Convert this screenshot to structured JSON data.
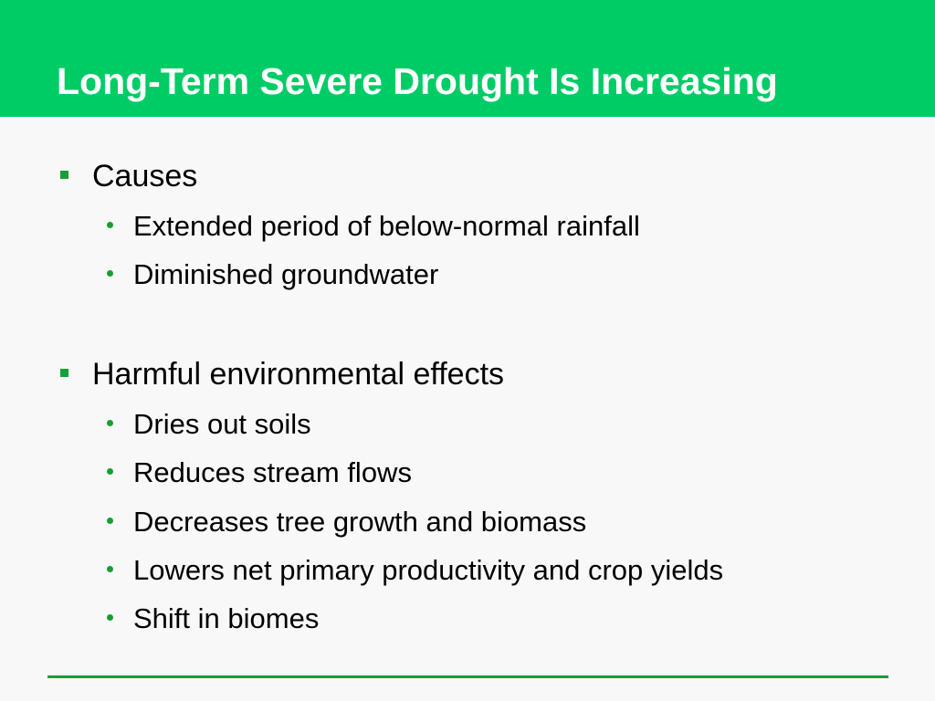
{
  "slide": {
    "title": "Long-Term Severe Drought Is Increasing",
    "accent_color": "#00cc66",
    "bullet_color": "#16a034",
    "sections": [
      {
        "heading": "Causes",
        "items": [
          "Extended period of below-normal rainfall",
          "Diminished groundwater"
        ]
      },
      {
        "heading": "Harmful environmental effects",
        "items": [
          "Dries out soils",
          "Reduces stream flows",
          "Decreases tree growth and biomass",
          "Lowers net primary productivity and crop yields",
          "Shift in biomes"
        ]
      }
    ]
  }
}
